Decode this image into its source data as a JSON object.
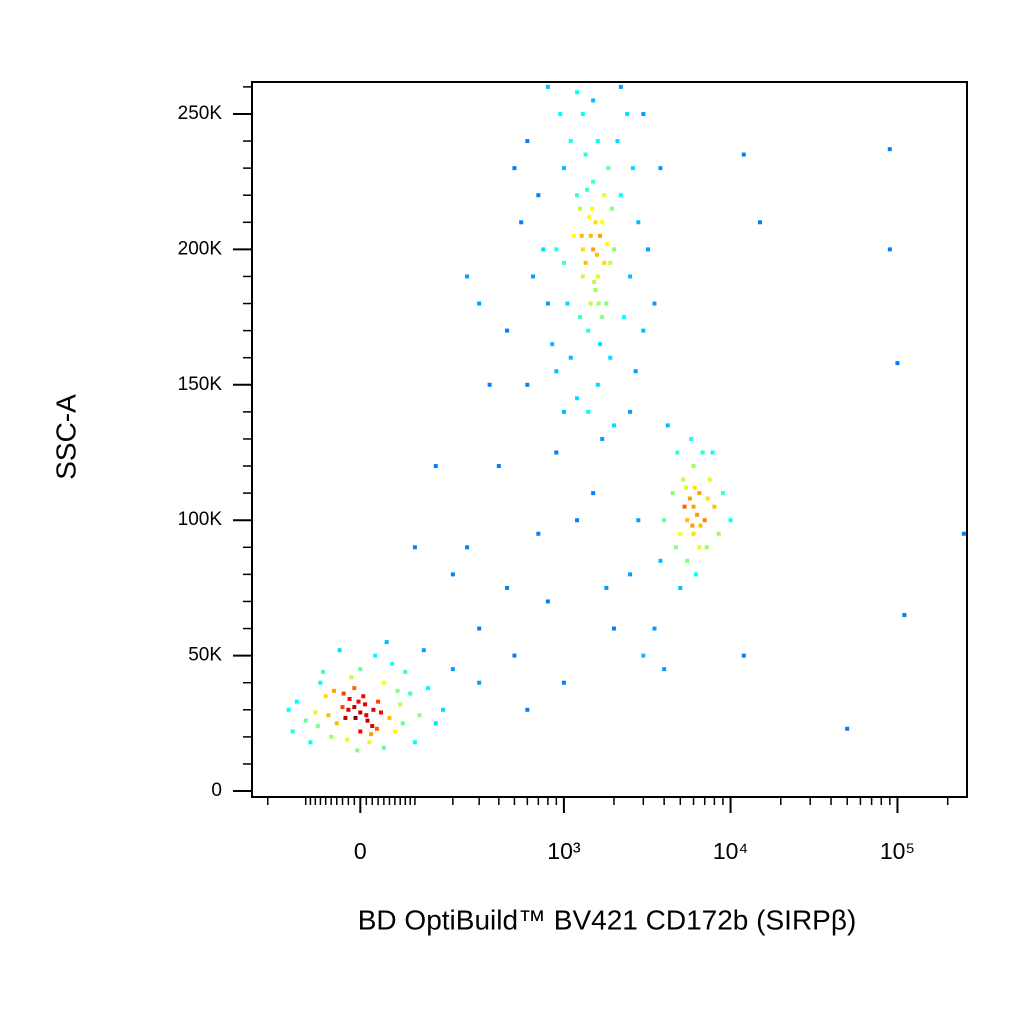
{
  "chart_data": {
    "type": "scatter",
    "x_label": "BD OptiBuild™ BV421 CD172b (SIRPβ)",
    "y_label": "SSC-A",
    "xscale": "asinh",
    "colormap": "jet",
    "xlim": [
      -256,
      261000
    ],
    "ylim": [
      -2200,
      261800
    ],
    "xticks": [
      0,
      {
        "value": 1000,
        "label": "10³"
      },
      {
        "value": 10000,
        "label": "10⁴"
      },
      {
        "value": 100000,
        "label": "10⁵"
      }
    ],
    "yticks": [
      0,
      {
        "value": 50000,
        "label": "50K"
      },
      {
        "value": 100000,
        "label": "100K"
      },
      {
        "value": 150000,
        "label": "150K"
      },
      {
        "value": 200000,
        "label": "200K"
      },
      {
        "value": 250000,
        "label": "250K"
      }
    ],
    "xminorticks": [
      -200,
      -100,
      -90,
      -80,
      -70,
      -60,
      -50,
      -40,
      -30,
      -20,
      -10,
      10,
      20,
      30,
      40,
      50,
      60,
      70,
      80,
      90,
      100,
      200,
      300,
      400,
      500,
      600,
      700,
      800,
      900,
      2000,
      3000,
      4000,
      5000,
      6000,
      7000,
      8000,
      9000,
      20000,
      30000,
      40000,
      50000,
      60000,
      70000,
      80000,
      90000,
      200000
    ],
    "yminorticks": [
      10000,
      20000,
      30000,
      40000,
      60000,
      70000,
      80000,
      90000,
      110000,
      120000,
      130000,
      140000,
      160000,
      170000,
      180000,
      190000,
      210000,
      220000,
      230000,
      240000,
      260000
    ],
    "x": [
      -20,
      10,
      -40,
      30,
      0,
      -60,
      50,
      -10,
      20,
      -30,
      40,
      -80,
      70,
      0,
      -50,
      90,
      -100,
      15,
      -15,
      60,
      -70,
      110,
      -120,
      25,
      -5,
      80,
      -90,
      130,
      5,
      -25,
      35,
      -45,
      55,
      150,
      -130,
      -35,
      100,
      45,
      -10,
      12,
      -18,
      22,
      -55,
      65,
      -75,
      0,
      8,
      -8,
      28,
      -28,
      170,
      200,
      120,
      -140,
      18,
      -22,
      75,
      -65,
      40,
      -3,
      1500,
      1300,
      1700,
      1200,
      1800,
      1000,
      2000,
      1400,
      1600,
      900,
      2200,
      1100,
      2500,
      1300,
      800,
      1900,
      1500,
      1700,
      1000,
      2100,
      700,
      2800,
      1200,
      1600,
      3000,
      600,
      1450,
      1550,
      1250,
      1750,
      950,
      2300,
      850,
      2600,
      1350,
      1650,
      1050,
      1950,
      750,
      3200,
      500,
      1400,
      2000,
      1150,
      1850,
      1500,
      2400,
      650,
      1250,
      1550,
      1750,
      1100,
      900,
      2700,
      3500,
      550,
      1300,
      1600,
      1450,
      1900,
      800,
      2200,
      1000,
      1700,
      3800,
      450,
      2500,
      1200,
      600,
      3000,
      1650,
      1350,
      1580,
      1420,
      1520,
      1280,
      1820,
      1480,
      1620,
      1380,
      6000,
      5500,
      6500,
      5000,
      7000,
      6000,
      4500,
      7500,
      5500,
      6500,
      4000,
      8000,
      5800,
      6200,
      5200,
      6800,
      4800,
      7200,
      9000,
      3800,
      6000,
      5700,
      6300,
      5400,
      6600,
      4200,
      8500,
      7800,
      5000,
      10000,
      6100,
      5900,
      4700,
      7300,
      5300,
      300,
      500,
      800,
      250,
      1500,
      2000,
      3000,
      2500,
      1200,
      400,
      200,
      600,
      1000,
      3500,
      4000,
      350,
      150,
      100,
      2800,
      700,
      1800,
      450,
      300,
      900,
      12000,
      15000,
      12000,
      90000,
      90000,
      100000,
      110000,
      50000,
      250000,
      300,
      250
    ],
    "y": [
      30000,
      28000,
      25000,
      33000,
      22000,
      35000,
      27000,
      38000,
      24000,
      31000,
      40000,
      29000,
      32000,
      45000,
      20000,
      36000,
      26000,
      18000,
      42000,
      22000,
      40000,
      28000,
      33000,
      50000,
      15000,
      44000,
      18000,
      38000,
      35000,
      27000,
      29000,
      37000,
      47000,
      25000,
      22000,
      52000,
      18000,
      55000,
      31000,
      26000,
      34000,
      30000,
      28000,
      37000,
      24000,
      29000,
      32000,
      27000,
      23000,
      36000,
      30000,
      45000,
      52000,
      30000,
      21000,
      19000,
      25000,
      44000,
      16000,
      33000,
      200000,
      190000,
      210000,
      220000,
      180000,
      230000,
      200000,
      170000,
      240000,
      200000,
      220000,
      160000,
      190000,
      250000,
      180000,
      160000,
      225000,
      175000,
      195000,
      240000,
      220000,
      210000,
      145000,
      150000,
      170000,
      240000,
      205000,
      185000,
      215000,
      195000,
      250000,
      175000,
      165000,
      230000,
      235000,
      165000,
      180000,
      215000,
      200000,
      200000,
      230000,
      140000,
      135000,
      205000,
      230000,
      255000,
      250000,
      190000,
      175000,
      210000,
      220000,
      240000,
      155000,
      155000,
      180000,
      210000,
      200000,
      190000,
      180000,
      195000,
      260000,
      260000,
      140000,
      130000,
      230000,
      170000,
      140000,
      258000,
      150000,
      250000,
      205000,
      195000,
      198000,
      212000,
      188000,
      205000,
      202000,
      215000,
      180000,
      222000,
      105000,
      100000,
      110000,
      95000,
      100000,
      120000,
      110000,
      115000,
      85000,
      90000,
      100000,
      105000,
      130000,
      80000,
      115000,
      125000,
      125000,
      90000,
      110000,
      85000,
      95000,
      108000,
      102000,
      112000,
      98000,
      135000,
      95000,
      125000,
      75000,
      100000,
      112000,
      98000,
      90000,
      108000,
      105000,
      60000,
      50000,
      70000,
      90000,
      110000,
      60000,
      50000,
      80000,
      100000,
      120000,
      80000,
      30000,
      40000,
      60000,
      45000,
      150000,
      120000,
      90000,
      100000,
      95000,
      75000,
      75000,
      40000,
      125000,
      50000,
      210000,
      235000,
      237000,
      200000,
      158000,
      65000,
      23000,
      95000,
      180000,
      190000
    ]
  }
}
